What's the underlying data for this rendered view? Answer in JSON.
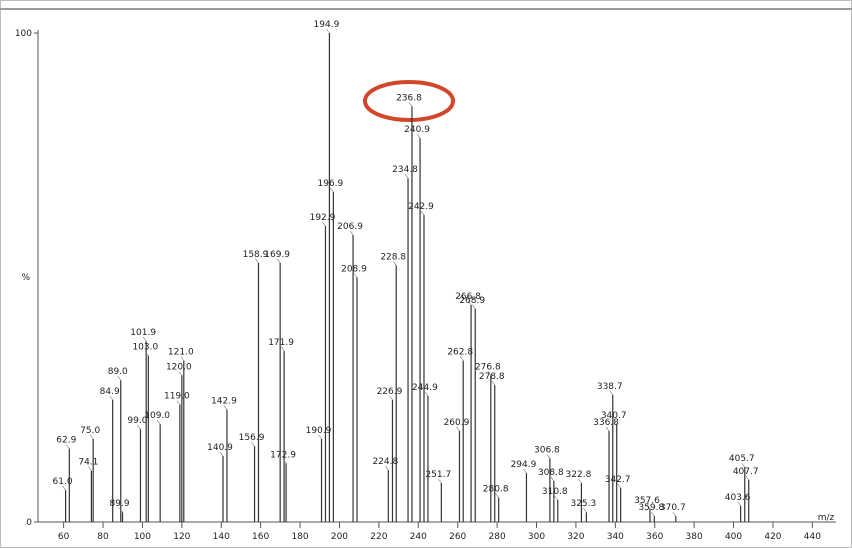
{
  "chart_data": {
    "type": "stick",
    "y_label": "%",
    "x_label": "m/z",
    "color": "#333333",
    "xlim": [
      47,
      452
    ],
    "ylim": [
      0,
      100
    ],
    "xticks": [
      60,
      80,
      100,
      120,
      140,
      160,
      180,
      200,
      220,
      240,
      260,
      280,
      300,
      320,
      340,
      360,
      380,
      400,
      420,
      440
    ],
    "yticks": [
      0,
      100
    ],
    "x": [
      61.0,
      62.9,
      74.1,
      75.0,
      84.9,
      89.0,
      89.9,
      99.0,
      101.9,
      103.0,
      109.0,
      119.0,
      120.0,
      121.0,
      140.9,
      142.9,
      156.9,
      158.9,
      169.9,
      171.9,
      172.9,
      190.9,
      192.9,
      194.9,
      196.9,
      206.9,
      208.9,
      224.8,
      226.9,
      228.8,
      234.8,
      236.8,
      240.9,
      242.9,
      244.9,
      251.7,
      260.9,
      262.8,
      266.8,
      268.9,
      276.8,
      278.8,
      280.8,
      294.9,
      306.8,
      308.8,
      310.8,
      322.8,
      325.3,
      336.8,
      338.7,
      340.7,
      342.7,
      357.6,
      359.8,
      370.7,
      403.6,
      405.7,
      407.7
    ],
    "labels": [
      "61.0",
      "62.9",
      "74.1",
      "75.0",
      "84.9",
      "89.0",
      "89.9",
      "99.0",
      "101.9",
      "103.0",
      "109.0",
      "119.0",
      "120.0",
      "121.0",
      "140.9",
      "142.9",
      "156.9",
      "158.9",
      "169.9",
      "171.9",
      "172.9",
      "190.9",
      "192.9",
      "194.9",
      "196.9",
      "206.9",
      "208.9",
      "224.8",
      "226.9",
      "228.8",
      "234.8",
      "236.8",
      "240.9",
      "242.9",
      "244.9",
      "251.7",
      "260.9",
      "262.8",
      "266.8",
      "268.9",
      "276.8",
      "278.8",
      "280.8",
      "294.9",
      "306.8",
      "308.8",
      "310.8",
      "322.8",
      "325.3",
      "336.8",
      "338.7",
      "340.7",
      "342.7",
      "357.6",
      "359.8",
      "370.7",
      "403.6",
      "405.7",
      "407.7"
    ],
    "values": [
      6.5,
      15,
      10.5,
      17,
      25,
      29,
      2,
      19,
      37,
      34,
      20,
      24,
      30,
      33,
      13.5,
      23,
      15.5,
      53,
      53,
      35,
      12,
      17,
      60.5,
      100,
      67.5,
      58.7,
      50,
      10.6,
      25,
      52.5,
      70.3,
      85,
      78.5,
      62.8,
      25.8,
      8,
      18.6,
      33,
      44.4,
      43.6,
      30,
      28,
      5,
      10,
      13,
      8.4,
      4.5,
      8,
      2,
      18.6,
      26,
      20,
      7,
      2.7,
      1.2,
      1.2,
      3.3,
      11.2,
      8.6
    ]
  }
}
